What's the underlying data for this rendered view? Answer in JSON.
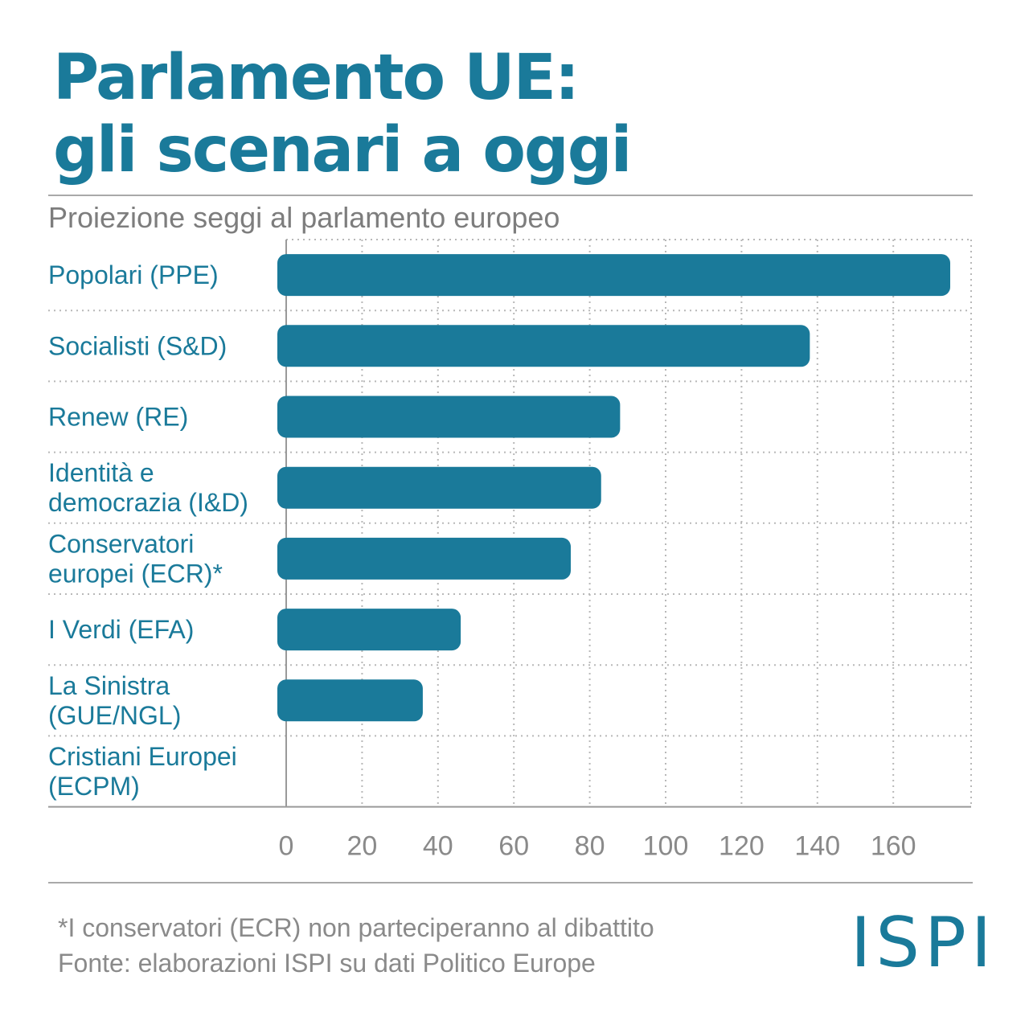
{
  "header": {
    "title_line1": "Parlamento UE:",
    "title_line2": "gli scenari a oggi",
    "subtitle": "Proiezione seggi al parlamento europeo"
  },
  "chart_data": {
    "type": "bar",
    "orientation": "horizontal",
    "title": "",
    "xlabel": "",
    "ylabel": "",
    "categories": [
      [
        "Popolari (PPE)"
      ],
      [
        "Socialisti (S&D)"
      ],
      [
        "Renew (RE)"
      ],
      [
        "Identità e",
        "democrazia (I&D)"
      ],
      [
        "Conservatori",
        "europei (ECR)*"
      ],
      [
        "I Verdi (EFA)"
      ],
      [
        "La Sinistra",
        "(GUE/NGL)"
      ],
      [
        "Cristiani Europei",
        "(ECPM)"
      ]
    ],
    "values": [
      175,
      138,
      88,
      83,
      75,
      46,
      36,
      0
    ],
    "xlim": [
      0,
      180
    ],
    "ticks": [
      0,
      20,
      40,
      60,
      80,
      100,
      120,
      140,
      160
    ],
    "grid": "dotted",
    "bar_color": "#1a7a9a"
  },
  "footer": {
    "note": "*I conservatori (ECR) non parteciperanno al dibattito",
    "source": "Fonte: elaborazioni ISPI su dati Politico Europe",
    "logo": "ISPI"
  }
}
